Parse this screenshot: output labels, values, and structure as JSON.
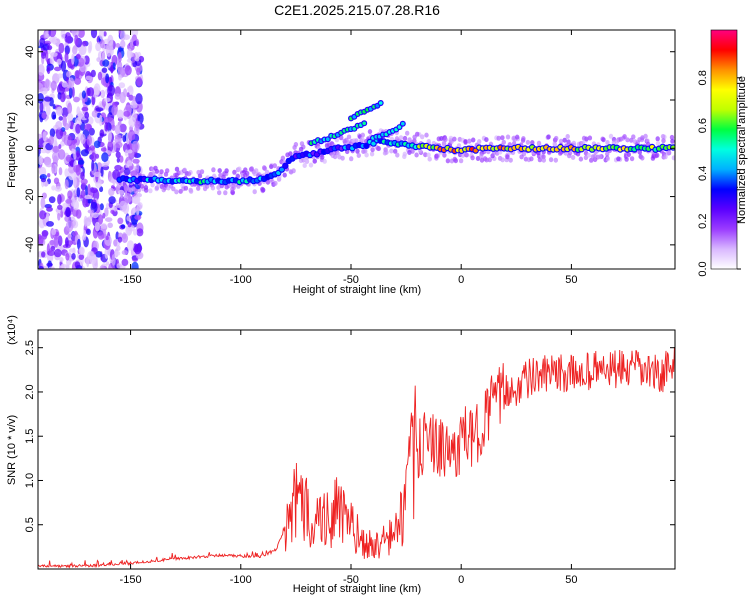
{
  "title": "C2E1.2025.215.07.28.R16",
  "chart_data": [
    {
      "type": "heatmap",
      "xlabel": "Height of straight line (km)",
      "ylabel": "Frequency (Hz)",
      "xlim": [
        -192,
        97
      ],
      "ylim": [
        -50,
        49
      ],
      "xticks": [
        -150,
        -100,
        -50,
        0,
        50
      ],
      "yticks": [
        -40,
        -20,
        0,
        20,
        40
      ],
      "colorbar": {
        "label": "Normalized spectral amplitude",
        "range": [
          0.0,
          1.0
        ],
        "ticks": [
          "0.0",
          "0.2",
          "0.4",
          "0.6",
          "0.8"
        ],
        "colors": [
          "#ffffff",
          "#d9b8ff",
          "#9b3cff",
          "#5a00ff",
          "#0000ff",
          "#00b0ff",
          "#00ffe0",
          "#00ff40",
          "#c0ff00",
          "#ffff00",
          "#ff9000",
          "#ff0000",
          "#ff0080"
        ]
      },
      "trace": {
        "x": [
          -155,
          -140,
          -120,
          -100,
          -90,
          -84,
          -80,
          -75,
          -65,
          -55,
          -45,
          -38,
          -30,
          -20,
          -10,
          0,
          10,
          30,
          60,
          95
        ],
        "frequency": [
          -13,
          -13,
          -13.5,
          -13.5,
          -13,
          -11,
          -7,
          -3,
          -2,
          0,
          1,
          3,
          2,
          1,
          0,
          -1,
          0,
          0,
          0,
          0
        ],
        "amplitude": [
          0.3,
          0.4,
          0.45,
          0.45,
          0.4,
          0.35,
          0.3,
          0.28,
          0.35,
          0.32,
          0.35,
          0.4,
          0.5,
          0.55,
          0.75,
          0.8,
          0.75,
          0.75,
          0.7,
          0.6
        ]
      }
    },
    {
      "type": "line",
      "xlabel": "Height of straight line (km)",
      "ylabel": "SNR (10 * v/v)",
      "yunit": "(x10⁴)",
      "xlim": [
        -192,
        97
      ],
      "ylim": [
        0,
        2.7
      ],
      "xticks": [
        -150,
        -100,
        -50,
        0,
        50
      ],
      "yticks": [
        0.5,
        1.0,
        1.5,
        2.0,
        2.5
      ],
      "series": [
        {
          "color": "#ee2222",
          "x": [
            -192,
            -170,
            -150,
            -130,
            -120,
            -110,
            -100,
            -90,
            -84,
            -80,
            -76,
            -72,
            -68,
            -64,
            -60,
            -56,
            -52,
            -48,
            -44,
            -40,
            -36,
            -32,
            -28,
            -25,
            -22,
            -18,
            -14,
            -10,
            -6,
            -2,
            2,
            6,
            10,
            15,
            20,
            25,
            30,
            40,
            50,
            60,
            70,
            80,
            90,
            97
          ],
          "values": [
            0.02,
            0.02,
            0.05,
            0.1,
            0.12,
            0.14,
            0.13,
            0.13,
            0.2,
            0.45,
            0.75,
            0.7,
            0.6,
            0.55,
            0.6,
            0.65,
            0.55,
            0.4,
            0.3,
            0.25,
            0.3,
            0.35,
            0.5,
            0.8,
            1.2,
            1.4,
            1.5,
            1.35,
            1.3,
            1.35,
            1.5,
            1.45,
            1.7,
            1.9,
            2.0,
            2.05,
            2.15,
            2.2,
            2.2,
            2.25,
            2.25,
            2.25,
            2.2,
            2.3
          ]
        }
      ]
    }
  ]
}
